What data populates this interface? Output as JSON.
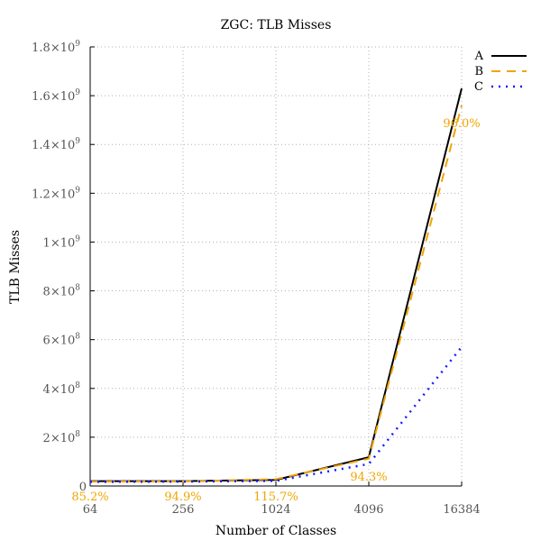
{
  "chart_data": {
    "type": "line",
    "title": "ZGC: TLB Misses",
    "xlabel": "Number of Classes",
    "ylabel": "TLB Misses",
    "x_scale": "log2",
    "x": [
      64,
      256,
      1024,
      4096,
      16384
    ],
    "x_tick_labels": [
      "64",
      "256",
      "1024",
      "4096",
      "16384"
    ],
    "ylim": [
      0,
      1800000000
    ],
    "y_ticks": [
      {
        "value": 0,
        "mantissa": "0",
        "exp": ""
      },
      {
        "value": 200000000,
        "mantissa": "2×10",
        "exp": "8"
      },
      {
        "value": 400000000,
        "mantissa": "4×10",
        "exp": "8"
      },
      {
        "value": 600000000,
        "mantissa": "6×10",
        "exp": "8"
      },
      {
        "value": 800000000,
        "mantissa": "8×10",
        "exp": "8"
      },
      {
        "value": 1000000000,
        "mantissa": "1×10",
        "exp": "9"
      },
      {
        "value": 1200000000,
        "mantissa": "1.2×10",
        "exp": "9"
      },
      {
        "value": 1400000000,
        "mantissa": "1.4×10",
        "exp": "9"
      },
      {
        "value": 1600000000,
        "mantissa": "1.6×10",
        "exp": "9"
      },
      {
        "value": 1800000000,
        "mantissa": "1.8×10",
        "exp": "9"
      }
    ],
    "series": [
      {
        "name": "A",
        "values": [
          20000000,
          20000000,
          25000000,
          118000000,
          1630000000
        ],
        "color": "#000000",
        "style": "solid"
      },
      {
        "name": "B",
        "values": [
          18000000,
          19000000,
          28000000,
          112000000,
          1560000000
        ],
        "color": "#f0a500",
        "style": "dashed"
      },
      {
        "name": "C",
        "values": [
          17000000,
          18000000,
          21000000,
          90000000,
          570000000
        ],
        "color": "#1a1aff",
        "style": "dotted"
      }
    ],
    "annotations": [
      {
        "text": "85.2%",
        "x": 64,
        "y": -40000000
      },
      {
        "text": "94.9%",
        "x": 256,
        "y": -40000000
      },
      {
        "text": "115.7%",
        "x": 1024,
        "y": -40000000
      },
      {
        "text": "94.3%",
        "x": 4096,
        "y": 40000000
      },
      {
        "text": "96.0%",
        "x": 16384,
        "y": 1490000000
      }
    ],
    "grid": true,
    "legend_position": "top-right"
  }
}
